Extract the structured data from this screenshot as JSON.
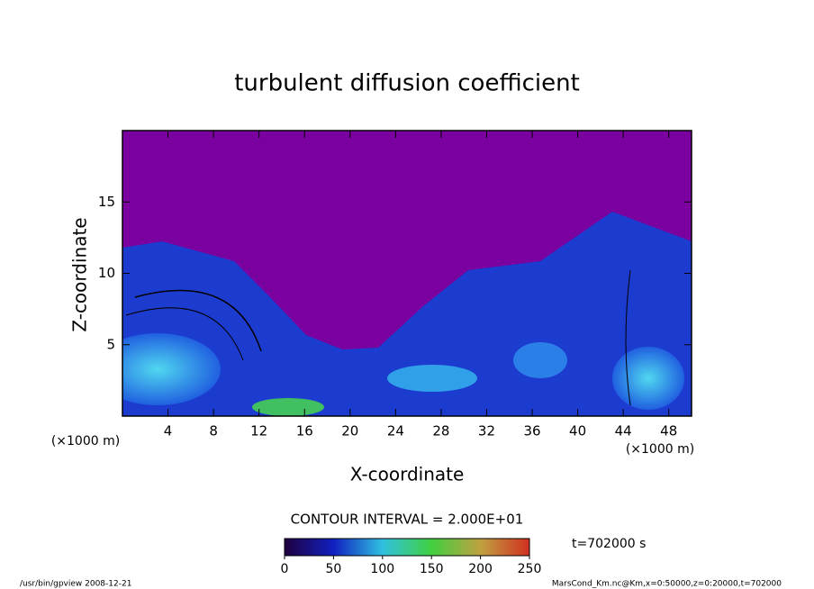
{
  "chart_data": {
    "type": "field",
    "title": "turbulent diffusion coefficient",
    "xlabel": "X-coordinate",
    "ylabel": "Z-coordinate",
    "xunit": "(×1000 m)",
    "yunit": "(×1000 m)",
    "xlim": [
      0,
      50
    ],
    "xticks": [
      4,
      8,
      12,
      16,
      20,
      24,
      28,
      32,
      36,
      40,
      44,
      48
    ],
    "ylim": [
      0,
      20
    ],
    "yticks": [
      5,
      10,
      15
    ],
    "contour_interval": "CONTOUR INTERVAL = 2.000E+01",
    "colorbar_lim": [
      0,
      250
    ],
    "colorbar_ticks": [
      0,
      50,
      100,
      150,
      200,
      250
    ],
    "time": "t=702000 s",
    "footer_left": "/usr/bin/gpview   2008-12-21",
    "footer_right": "MarsCond_Km.nc@Km,x=0:50000,z=0:20000,t=702000"
  }
}
